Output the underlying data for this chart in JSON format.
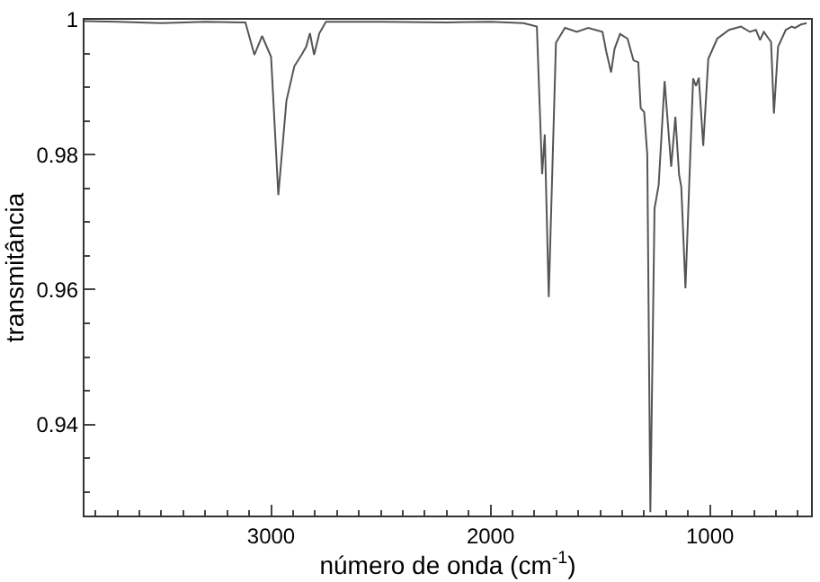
{
  "chart_data": {
    "type": "line",
    "xlabel": "número de onda (cm$^{-1}$)",
    "ylabel": "transmitância",
    "xlim": [
      3850,
      540
    ],
    "xticks": [
      3000,
      2000,
      1000
    ],
    "ylim": [
      0.9265,
      1.0
    ],
    "yticks": [
      1,
      0.98,
      0.96,
      0.94
    ],
    "marker": "none",
    "line_style": "solid",
    "series": [
      {
        "color": "#555555",
        "x": [
          3850,
          3700,
          3500,
          3300,
          3117,
          3076,
          3041,
          3000,
          2967,
          2930,
          2894,
          2861,
          2840,
          2823,
          2804,
          2780,
          2750,
          2500,
          2200,
          2000,
          1850,
          1789,
          1765,
          1753,
          1735,
          1702,
          1661,
          1607,
          1555,
          1490,
          1473,
          1451,
          1435,
          1410,
          1376,
          1349,
          1327,
          1316,
          1300,
          1286,
          1272,
          1253,
          1234,
          1207,
          1177,
          1158,
          1141,
          1131,
          1112,
          1090,
          1077,
          1064,
          1051,
          1031,
          1008,
          967,
          913,
          859,
          818,
          791,
          772,
          755,
          722,
          709,
          690,
          655,
          628,
          614,
          586,
          560
        ],
        "values": [
          0.9998,
          0.9997,
          0.9995,
          0.9997,
          0.9996,
          0.9948,
          0.9976,
          0.9945,
          0.974,
          0.988,
          0.9931,
          0.9948,
          0.996,
          0.998,
          0.9948,
          0.998,
          0.9997,
          0.9997,
          0.9996,
          0.9997,
          0.9995,
          0.999,
          0.9771,
          0.983,
          0.9589,
          0.9966,
          0.9988,
          0.9982,
          0.9988,
          0.9982,
          0.9953,
          0.9922,
          0.9957,
          0.9979,
          0.9972,
          0.994,
          0.9937,
          0.9869,
          0.9863,
          0.98,
          0.927,
          0.972,
          0.9755,
          0.9909,
          0.9782,
          0.9856,
          0.977,
          0.9752,
          0.9602,
          0.98,
          0.9913,
          0.9902,
          0.9914,
          0.9813,
          0.9942,
          0.9972,
          0.9985,
          0.999,
          0.9982,
          0.9985,
          0.997,
          0.9982,
          0.9967,
          0.9861,
          0.996,
          0.9985,
          0.999,
          0.9988,
          0.9993,
          0.9995
        ]
      }
    ]
  }
}
